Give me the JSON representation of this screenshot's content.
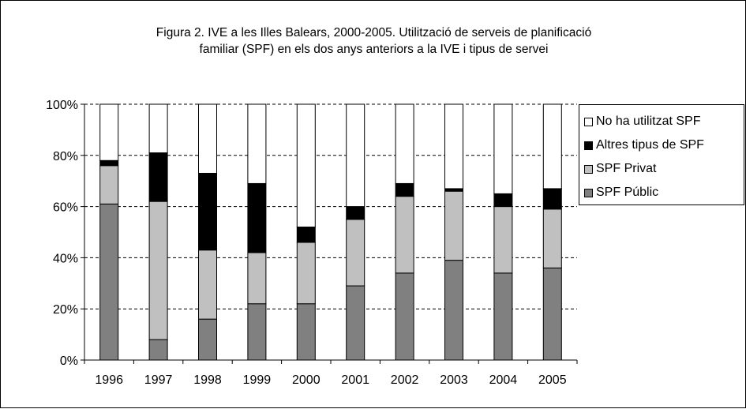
{
  "chart_data": {
    "type": "bar",
    "stacked": true,
    "percent": true,
    "title": "Figura 2. IVE a les Illes Balears, 2000-2005. Utilització de serveis de planificació familiar (SPF) en els dos anys anteriors a la IVE i tipus de servei",
    "title_lines": [
      "Figura 2. IVE a les Illes Balears, 2000-2005. Utilització de serveis de planificació",
      "familiar (SPF) en els dos anys anteriors a la IVE i tipus de servei"
    ],
    "categories": [
      "1996",
      "1997",
      "1998",
      "1999",
      "2000",
      "2001",
      "2002",
      "2003",
      "2004",
      "2005"
    ],
    "series": [
      {
        "name": "SPF Públic",
        "color": "#808080",
        "values": [
          61,
          8,
          16,
          22,
          22,
          29,
          34,
          39,
          34,
          36
        ]
      },
      {
        "name": "SPF Privat",
        "color": "#c0c0c0",
        "values": [
          15,
          54,
          27,
          20,
          24,
          26,
          30,
          27,
          26,
          23
        ]
      },
      {
        "name": "Altres tipus de SPF",
        "color": "#000000",
        "values": [
          2,
          19,
          30,
          27,
          6,
          5,
          5,
          1,
          5,
          8
        ]
      },
      {
        "name": "No ha utilitzat SPF",
        "color": "#ffffff",
        "values": [
          22,
          19,
          27,
          31,
          48,
          40,
          31,
          33,
          35,
          33
        ]
      }
    ],
    "legend_order": [
      "No ha utilitzat SPF",
      "Altres tipus de SPF",
      "SPF Privat",
      "SPF Públic"
    ],
    "yticks": [
      "0%",
      "20%",
      "40%",
      "60%",
      "80%",
      "100%"
    ],
    "ylim": [
      0,
      100
    ],
    "xlabel": "",
    "ylabel": "",
    "grid": true,
    "legend_position": "right"
  }
}
